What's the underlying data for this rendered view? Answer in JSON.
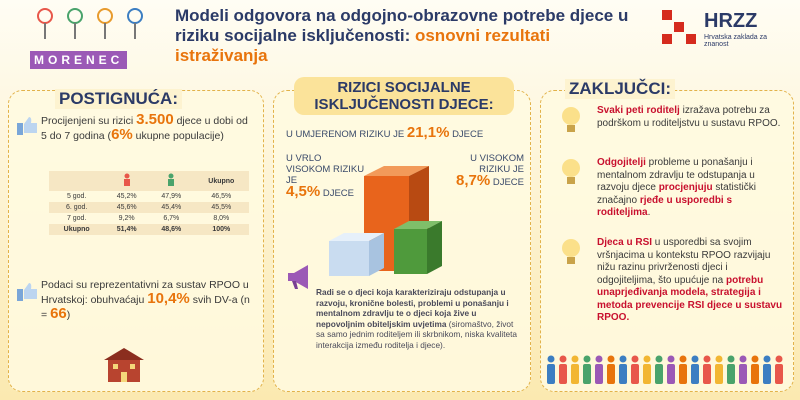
{
  "header": {
    "logo_left": "MORENEC",
    "title": [
      "Modeli odgovora na odgojno-obrazovne potrebe djece u riziku socijalne isključenosti: ",
      {
        "text": "osnovni rezultati istraživanja",
        "color": "#e8740c"
      }
    ],
    "logo_right": "HRZZ",
    "logo_right_sub": "Hrvatska zaklada za znanost"
  },
  "left": {
    "heading": "POSTIGNUĆA:",
    "item1": [
      "Procijenjeni su rizici ",
      {
        "text": "3.500",
        "color": "#e8740c",
        "bold": true,
        "large": true
      },
      " djece u dobi od 5 do 7 godina (",
      {
        "text": "6%",
        "color": "#e8740c",
        "bold": true,
        "large": true
      },
      " ukupne populacije)"
    ],
    "table": {
      "total_header": "Ukupno",
      "rows": [
        [
          "5 god.",
          "45,2%",
          "47,9%",
          "46,5%"
        ],
        [
          "6. god.",
          "45,6%",
          "45,4%",
          "45,5%"
        ],
        [
          "7 god.",
          "9,2%",
          "6,7%",
          "8,0%"
        ],
        [
          "Ukupno",
          "51,4%",
          "48,6%",
          "100%"
        ]
      ]
    },
    "item2": [
      "Podaci su reprezentativni za sustav RPOO u Hrvatskoj: obuhvaćaju ",
      {
        "text": "10,4%",
        "color": "#e8740c",
        "bold": true,
        "large": true
      },
      " svih DV-a (n = ",
      {
        "text": "66",
        "color": "#e8740c",
        "bold": true,
        "large": true
      },
      ")"
    ]
  },
  "middle": {
    "heading": "RIZICI SOCIJALNE ISKLJUČENOSTI DJECE:",
    "moderate": {
      "label": "U UMJERENOM RIZIKU JE",
      "value": "21,1%",
      "suffix": "DJECE"
    },
    "very_high": {
      "label": "U VRLO VISOKOM RIZIKU JE",
      "value": "4,5%",
      "suffix": "DJECE"
    },
    "high": {
      "label": "U VISOKOM RIZIKU JE",
      "value": "8,7%",
      "suffix": "DJECE"
    },
    "note": [
      {
        "text": "Radi se o djeci koja karakteriziraju odstupanja u razvoju, kronične bolesti, problemi u ponašanju i mentalnom zdravlju te o djeci koja žive u nepovoljnim obiteljskim uvjetima",
        "bold": true
      },
      " (siromaštvo, život sa samo jednim roditeljem ili skrbnikom, niska kvaliteta interakcija između roditelja i djece)."
    ]
  },
  "right": {
    "heading": "ZAKLJUČCI:",
    "items": [
      [
        {
          "text": "Svaki peti roditelj",
          "color": "#c8102e",
          "bold": true
        },
        " izražava potrebu za podrškom u roditeljstvu u sustavu RPOO."
      ],
      [
        {
          "text": "Odgojitelji",
          "color": "#c8102e",
          "bold": true
        },
        " probleme u ponašanju i mentalnom zdravlju te odstupanja u razvoju djece ",
        {
          "text": "procjenjuju",
          "color": "#c8102e",
          "bold": true
        },
        " statistički značajno ",
        {
          "text": "rjeđe u usporedbi s roditeljima",
          "color": "#c8102e",
          "bold": true
        },
        "."
      ],
      [
        {
          "text": "Djeca u RSI",
          "color": "#c8102e",
          "bold": true
        },
        " u usporedbi sa svojim vršnjacima u kontekstu RPOO razvijaju nižu razinu privrženosti djeci i odgojiteljima, što upućuje na ",
        {
          "text": "potrebu unaprjeđivanja modela, strategija i metoda prevencije RSI djece u sustavu RPOO.",
          "color": "#c8102e",
          "bold": true
        }
      ]
    ]
  }
}
